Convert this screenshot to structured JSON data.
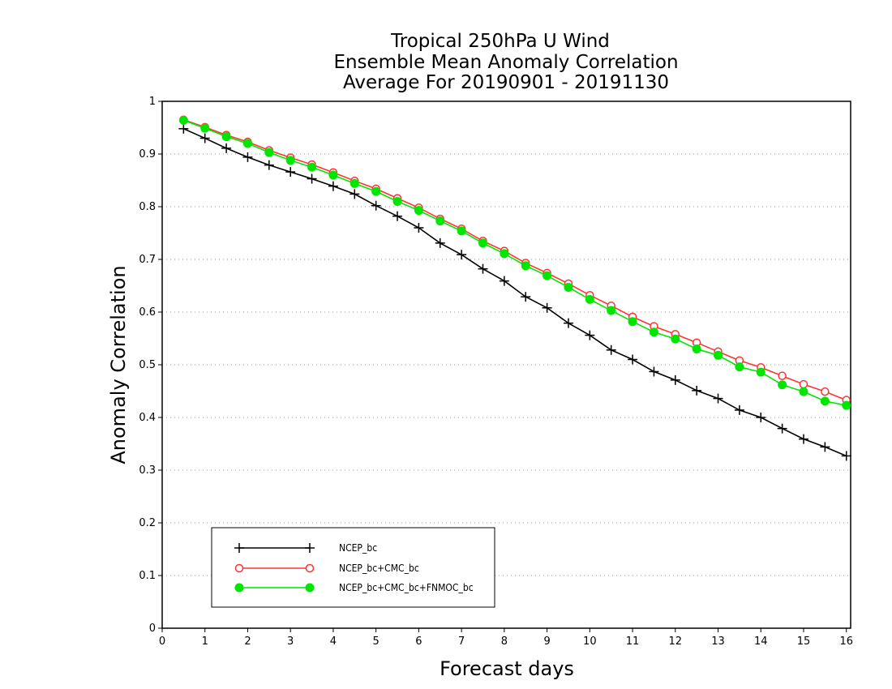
{
  "chart_data": {
    "type": "line",
    "title_lines": [
      "Tropical 250hPa U Wind",
      "Ensemble Mean Anomaly Correlation",
      "Average For 20190901 - 20191130"
    ],
    "xlabel": "Forecast days",
    "ylabel": "Anomaly Correlation",
    "xlim": [
      0,
      16.1
    ],
    "ylim": [
      0,
      1
    ],
    "x_ticks": [
      "0",
      "1",
      "2",
      "3",
      "4",
      "5",
      "6",
      "7",
      "8",
      "9",
      "10",
      "11",
      "12",
      "13",
      "14",
      "15",
      "16"
    ],
    "y_ticks": [
      "0",
      "0.1",
      "0.2",
      "0.3",
      "0.4",
      "0.5",
      "0.6",
      "0.7",
      "0.8",
      "0.9",
      "1"
    ],
    "grid": "horizontal dotted",
    "legend_position": "bottom-left",
    "x": [
      0.5,
      1,
      1.5,
      2,
      2.5,
      3,
      3.5,
      4,
      4.5,
      5,
      5.5,
      6,
      6.5,
      7,
      7.5,
      8,
      8.5,
      9,
      9.5,
      10,
      10.5,
      11,
      11.5,
      12,
      12.5,
      13,
      13.5,
      14,
      14.5,
      15,
      15.5,
      16
    ],
    "series": [
      {
        "name": "NCEP_bc",
        "color": "#000000",
        "marker": "plus",
        "values": [
          0.948,
          0.93,
          0.911,
          0.894,
          0.879,
          0.866,
          0.853,
          0.839,
          0.824,
          0.802,
          0.782,
          0.76,
          0.731,
          0.709,
          0.682,
          0.659,
          0.629,
          0.608,
          0.579,
          0.556,
          0.528,
          0.51,
          0.487,
          0.471,
          0.451,
          0.436,
          0.414,
          0.4,
          0.379,
          0.359,
          0.344,
          0.327
        ]
      },
      {
        "name": "NCEP_bc+CMC_bc",
        "color": "#ff3333",
        "marker": "open-circle",
        "values": [
          0.965,
          0.951,
          0.936,
          0.923,
          0.907,
          0.893,
          0.88,
          0.865,
          0.849,
          0.834,
          0.816,
          0.798,
          0.777,
          0.758,
          0.735,
          0.716,
          0.693,
          0.674,
          0.654,
          0.632,
          0.612,
          0.591,
          0.573,
          0.558,
          0.542,
          0.525,
          0.508,
          0.495,
          0.479,
          0.463,
          0.449,
          0.433
        ]
      },
      {
        "name": "NCEP_bc+CMC_bc+FNMOC_bc",
        "color": "#00e600",
        "marker": "filled-circle",
        "values": [
          0.964,
          0.949,
          0.933,
          0.92,
          0.903,
          0.888,
          0.875,
          0.86,
          0.844,
          0.829,
          0.81,
          0.793,
          0.773,
          0.754,
          0.731,
          0.711,
          0.688,
          0.669,
          0.647,
          0.624,
          0.603,
          0.582,
          0.562,
          0.549,
          0.53,
          0.518,
          0.496,
          0.486,
          0.462,
          0.449,
          0.431,
          0.423
        ]
      }
    ]
  }
}
